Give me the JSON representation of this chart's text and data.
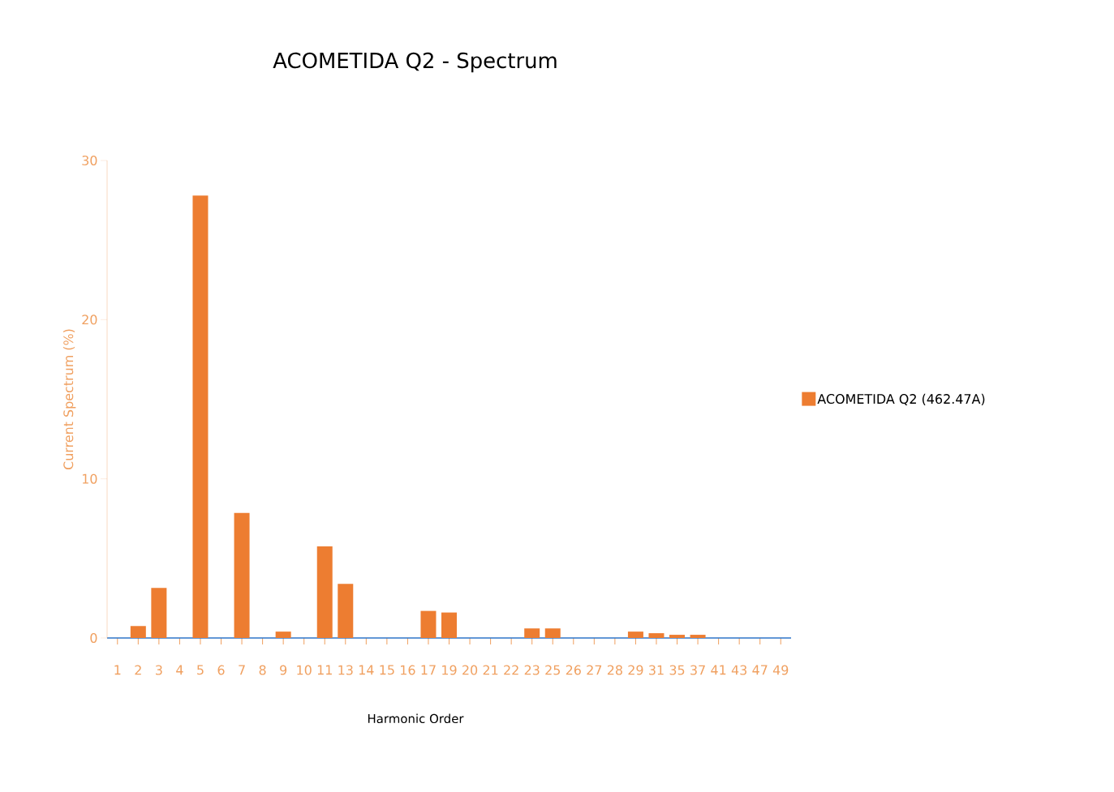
{
  "chart_data": {
    "type": "bar",
    "title": "ACOMETIDA Q2 - Spectrum",
    "xlabel": "Harmonic Order",
    "ylabel": "Current Spectrum (%)",
    "categories": [
      "1",
      "2",
      "3",
      "4",
      "5",
      "6",
      "7",
      "8",
      "9",
      "10",
      "11",
      "13",
      "14",
      "15",
      "16",
      "17",
      "19",
      "20",
      "21",
      "22",
      "23",
      "25",
      "26",
      "27",
      "28",
      "29",
      "31",
      "35",
      "37",
      "41",
      "43",
      "47",
      "49"
    ],
    "series": [
      {
        "name": "ACOMETIDA Q2 (462.47A)",
        "color": "#ed7d31",
        "values": [
          0,
          0.75,
          3.15,
          0,
          27.8,
          0,
          7.85,
          0,
          0.4,
          0,
          5.75,
          3.4,
          0,
          0,
          0,
          1.7,
          1.6,
          0,
          0,
          0,
          0.6,
          0.6,
          0,
          0,
          0,
          0.4,
          0.3,
          0.2,
          0.2,
          0,
          0,
          0,
          0
        ]
      }
    ],
    "ylim": [
      0,
      30
    ],
    "yticks": [
      0,
      10,
      20,
      30
    ],
    "legend": "right"
  }
}
